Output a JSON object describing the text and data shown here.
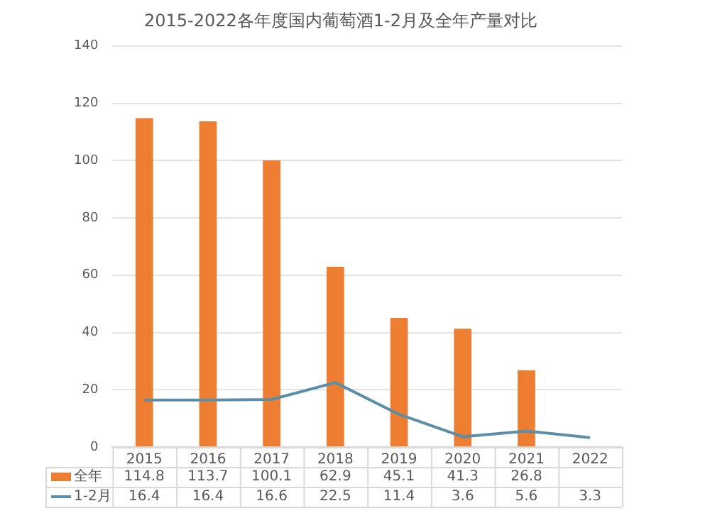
{
  "chart_data": {
    "type": "bar",
    "title": "2015-2022各年度国内葡萄酒1-2月及全年产量对比",
    "categories": [
      "2015",
      "2016",
      "2017",
      "2018",
      "2019",
      "2020",
      "2021",
      "2022"
    ],
    "series": [
      {
        "name": "全年",
        "color": "#ed7d31",
        "values": [
          114.8,
          113.7,
          100.1,
          62.9,
          45.1,
          41.3,
          26.8,
          null
        ]
      },
      {
        "name": "1-2月",
        "type": "line",
        "color": "#5b8fa8",
        "values": [
          16.4,
          16.4,
          16.6,
          22.5,
          11.4,
          3.6,
          5.6,
          3.3
        ]
      }
    ],
    "ylim": [
      0,
      140
    ],
    "yticks": [
      0,
      20,
      40,
      60,
      80,
      100,
      120,
      140
    ],
    "grid": "y",
    "legend": "bottom",
    "data_labels": true,
    "marker": "none"
  }
}
